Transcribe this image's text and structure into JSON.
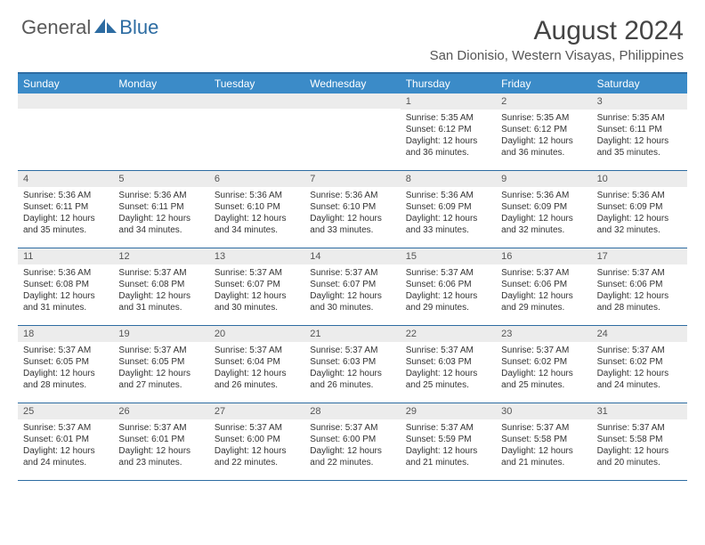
{
  "logo": {
    "general": "General",
    "blue": "Blue"
  },
  "title": "August 2024",
  "location": "San Dionisio, Western Visayas, Philippines",
  "colors": {
    "header_bg": "#3b8bc8",
    "border": "#2d6ca2",
    "daynum_bg": "#ececec",
    "text": "#333333"
  },
  "weekdays": [
    "Sunday",
    "Monday",
    "Tuesday",
    "Wednesday",
    "Thursday",
    "Friday",
    "Saturday"
  ],
  "weeks": [
    [
      null,
      null,
      null,
      null,
      {
        "n": "1",
        "sr": "5:35 AM",
        "ss": "6:12 PM",
        "dl": "12 hours and 36 minutes."
      },
      {
        "n": "2",
        "sr": "5:35 AM",
        "ss": "6:12 PM",
        "dl": "12 hours and 36 minutes."
      },
      {
        "n": "3",
        "sr": "5:35 AM",
        "ss": "6:11 PM",
        "dl": "12 hours and 35 minutes."
      }
    ],
    [
      {
        "n": "4",
        "sr": "5:36 AM",
        "ss": "6:11 PM",
        "dl": "12 hours and 35 minutes."
      },
      {
        "n": "5",
        "sr": "5:36 AM",
        "ss": "6:11 PM",
        "dl": "12 hours and 34 minutes."
      },
      {
        "n": "6",
        "sr": "5:36 AM",
        "ss": "6:10 PM",
        "dl": "12 hours and 34 minutes."
      },
      {
        "n": "7",
        "sr": "5:36 AM",
        "ss": "6:10 PM",
        "dl": "12 hours and 33 minutes."
      },
      {
        "n": "8",
        "sr": "5:36 AM",
        "ss": "6:09 PM",
        "dl": "12 hours and 33 minutes."
      },
      {
        "n": "9",
        "sr": "5:36 AM",
        "ss": "6:09 PM",
        "dl": "12 hours and 32 minutes."
      },
      {
        "n": "10",
        "sr": "5:36 AM",
        "ss": "6:09 PM",
        "dl": "12 hours and 32 minutes."
      }
    ],
    [
      {
        "n": "11",
        "sr": "5:36 AM",
        "ss": "6:08 PM",
        "dl": "12 hours and 31 minutes."
      },
      {
        "n": "12",
        "sr": "5:37 AM",
        "ss": "6:08 PM",
        "dl": "12 hours and 31 minutes."
      },
      {
        "n": "13",
        "sr": "5:37 AM",
        "ss": "6:07 PM",
        "dl": "12 hours and 30 minutes."
      },
      {
        "n": "14",
        "sr": "5:37 AM",
        "ss": "6:07 PM",
        "dl": "12 hours and 30 minutes."
      },
      {
        "n": "15",
        "sr": "5:37 AM",
        "ss": "6:06 PM",
        "dl": "12 hours and 29 minutes."
      },
      {
        "n": "16",
        "sr": "5:37 AM",
        "ss": "6:06 PM",
        "dl": "12 hours and 29 minutes."
      },
      {
        "n": "17",
        "sr": "5:37 AM",
        "ss": "6:06 PM",
        "dl": "12 hours and 28 minutes."
      }
    ],
    [
      {
        "n": "18",
        "sr": "5:37 AM",
        "ss": "6:05 PM",
        "dl": "12 hours and 28 minutes."
      },
      {
        "n": "19",
        "sr": "5:37 AM",
        "ss": "6:05 PM",
        "dl": "12 hours and 27 minutes."
      },
      {
        "n": "20",
        "sr": "5:37 AM",
        "ss": "6:04 PM",
        "dl": "12 hours and 26 minutes."
      },
      {
        "n": "21",
        "sr": "5:37 AM",
        "ss": "6:03 PM",
        "dl": "12 hours and 26 minutes."
      },
      {
        "n": "22",
        "sr": "5:37 AM",
        "ss": "6:03 PM",
        "dl": "12 hours and 25 minutes."
      },
      {
        "n": "23",
        "sr": "5:37 AM",
        "ss": "6:02 PM",
        "dl": "12 hours and 25 minutes."
      },
      {
        "n": "24",
        "sr": "5:37 AM",
        "ss": "6:02 PM",
        "dl": "12 hours and 24 minutes."
      }
    ],
    [
      {
        "n": "25",
        "sr": "5:37 AM",
        "ss": "6:01 PM",
        "dl": "12 hours and 24 minutes."
      },
      {
        "n": "26",
        "sr": "5:37 AM",
        "ss": "6:01 PM",
        "dl": "12 hours and 23 minutes."
      },
      {
        "n": "27",
        "sr": "5:37 AM",
        "ss": "6:00 PM",
        "dl": "12 hours and 22 minutes."
      },
      {
        "n": "28",
        "sr": "5:37 AM",
        "ss": "6:00 PM",
        "dl": "12 hours and 22 minutes."
      },
      {
        "n": "29",
        "sr": "5:37 AM",
        "ss": "5:59 PM",
        "dl": "12 hours and 21 minutes."
      },
      {
        "n": "30",
        "sr": "5:37 AM",
        "ss": "5:58 PM",
        "dl": "12 hours and 21 minutes."
      },
      {
        "n": "31",
        "sr": "5:37 AM",
        "ss": "5:58 PM",
        "dl": "12 hours and 20 minutes."
      }
    ]
  ],
  "labels": {
    "sunrise": "Sunrise:",
    "sunset": "Sunset:",
    "daylight": "Daylight:"
  }
}
